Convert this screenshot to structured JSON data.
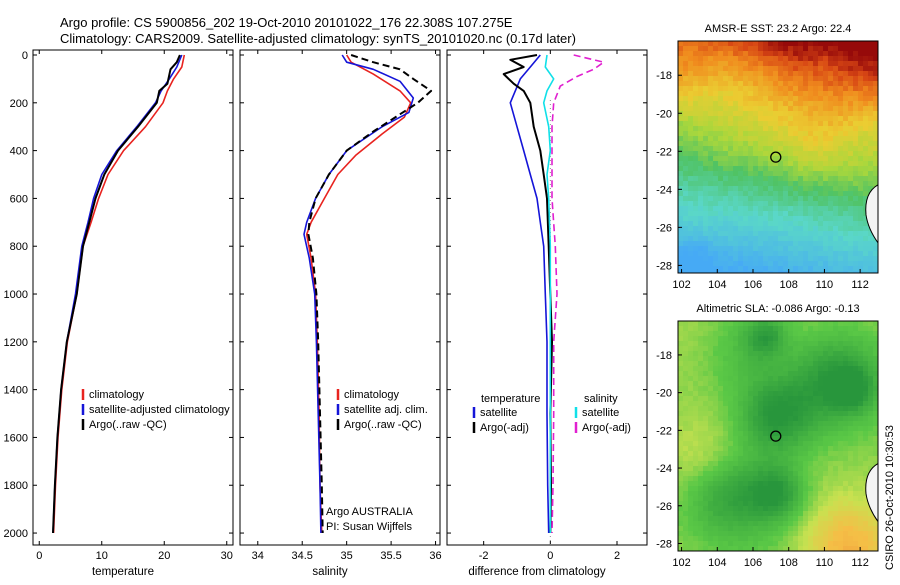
{
  "figure": {
    "title_line1": "Argo profile: CS 5900856_202 19-Oct-2010 20101022_176 22.308S 107.275E",
    "title_line2": "Climatology: CARS2009. Satellite-adjusted climatology: synTS_20101020.nc (0.17d later)",
    "credit": "CSIRO 26-Oct-2010 10:30:53",
    "float_info": [
      "Argo AUSTRALIA",
      "PI: Susan Wijffels"
    ]
  },
  "colors": {
    "climatology": "#e8231f",
    "satellite": "#1515d8",
    "argo": "#000000",
    "satellite_salinity": "#10e0e8",
    "argo_salinity": "#e020d0",
    "zero_line": "#888888"
  },
  "chart_data": [
    {
      "type": "line",
      "xlabel": "temperature",
      "ylabel": "",
      "xlim": [
        -1,
        31
      ],
      "ylim": [
        2050,
        0
      ],
      "x_ticks": [
        "0",
        "10",
        "20",
        "30"
      ],
      "y_ticks": [
        "0",
        "200",
        "400",
        "600",
        "800",
        "1000",
        "1200",
        "1400",
        "1600",
        "1800",
        "2000"
      ],
      "legend_labels": [
        "climatology",
        "satellite-adjusted climatology",
        "Argo(..raw -QC)"
      ],
      "series": [
        {
          "name": "climatology",
          "role": "climatology",
          "dash": "solid",
          "points": [
            [
              23.2,
              0
            ],
            [
              22.8,
              50
            ],
            [
              21.5,
              100
            ],
            [
              20.5,
              150
            ],
            [
              19.8,
              200
            ],
            [
              17.0,
              300
            ],
            [
              13.5,
              400
            ],
            [
              11.0,
              500
            ],
            [
              9.5,
              600
            ],
            [
              8.3,
              700
            ],
            [
              7.0,
              800
            ],
            [
              6.0,
              1000
            ],
            [
              4.5,
              1200
            ],
            [
              3.6,
              1400
            ],
            [
              3.0,
              1600
            ],
            [
              2.6,
              1800
            ],
            [
              2.3,
              2000
            ]
          ]
        },
        {
          "name": "satellite-adjusted climatology",
          "role": "satellite",
          "dash": "solid",
          "points": [
            [
              22.8,
              0
            ],
            [
              22.0,
              50
            ],
            [
              20.8,
              100
            ],
            [
              19.5,
              150
            ],
            [
              18.6,
              200
            ],
            [
              15.6,
              300
            ],
            [
              12.4,
              400
            ],
            [
              10.0,
              500
            ],
            [
              8.7,
              600
            ],
            [
              7.8,
              700
            ],
            [
              6.8,
              800
            ],
            [
              5.8,
              1000
            ],
            [
              4.4,
              1200
            ],
            [
              3.5,
              1400
            ],
            [
              2.9,
              1600
            ],
            [
              2.5,
              1800
            ],
            [
              2.2,
              2000
            ]
          ]
        },
        {
          "name": "Argo(..raw -QC)",
          "role": "argo",
          "dash": "solid",
          "points": [
            [
              22.5,
              0
            ],
            [
              22.0,
              30
            ],
            [
              21.0,
              60
            ],
            [
              20.5,
              120
            ],
            [
              19.2,
              150
            ],
            [
              18.8,
              200
            ],
            [
              15.8,
              300
            ],
            [
              12.6,
              400
            ],
            [
              10.4,
              500
            ],
            [
              9.0,
              600
            ],
            [
              8.0,
              700
            ],
            [
              7.0,
              800
            ],
            [
              6.0,
              1000
            ],
            [
              4.4,
              1200
            ],
            [
              3.5,
              1400
            ],
            [
              2.9,
              1600
            ],
            [
              2.5,
              1800
            ],
            [
              2.2,
              2000
            ]
          ]
        }
      ]
    },
    {
      "type": "line",
      "xlabel": "salinity",
      "ylabel": "",
      "xlim": [
        33.8,
        36.05
      ],
      "ylim": [
        2050,
        0
      ],
      "x_ticks": [
        "34",
        "34.5",
        "35",
        "35.5",
        "36"
      ],
      "y_ticks": [],
      "legend_labels": [
        "climatology",
        "satellite adj. clim.",
        "Argo(..raw -QC)"
      ],
      "series": [
        {
          "name": "climatology",
          "role": "climatology",
          "dash": "solid",
          "points": [
            [
              35.0,
              0
            ],
            [
              35.05,
              30
            ],
            [
              35.3,
              80
            ],
            [
              35.6,
              150
            ],
            [
              35.72,
              200
            ],
            [
              35.65,
              260
            ],
            [
              35.4,
              330
            ],
            [
              35.1,
              420
            ],
            [
              34.9,
              500
            ],
            [
              34.75,
              600
            ],
            [
              34.6,
              700
            ],
            [
              34.55,
              750
            ],
            [
              34.6,
              850
            ],
            [
              34.65,
              1000
            ],
            [
              34.67,
              1200
            ],
            [
              34.69,
              1500
            ],
            [
              34.7,
              1800
            ],
            [
              34.72,
              2000
            ]
          ]
        },
        {
          "name": "satellite adj. clim.",
          "role": "satellite",
          "dash": "solid",
          "points": [
            [
              34.95,
              0
            ],
            [
              35.0,
              30
            ],
            [
              35.3,
              60
            ],
            [
              35.6,
              110
            ],
            [
              35.75,
              180
            ],
            [
              35.7,
              240
            ],
            [
              35.4,
              300
            ],
            [
              35.0,
              400
            ],
            [
              34.8,
              500
            ],
            [
              34.65,
              600
            ],
            [
              34.55,
              700
            ],
            [
              34.52,
              750
            ],
            [
              34.58,
              850
            ],
            [
              34.64,
              1000
            ],
            [
              34.66,
              1200
            ],
            [
              34.68,
              1500
            ],
            [
              34.7,
              1800
            ],
            [
              34.71,
              2000
            ]
          ]
        },
        {
          "name": "Argo(..raw -QC)",
          "role": "argo",
          "dash": "dashed",
          "points": [
            [
              35.05,
              0
            ],
            [
              35.3,
              30
            ],
            [
              35.6,
              60
            ],
            [
              35.75,
              100
            ],
            [
              35.95,
              150
            ],
            [
              35.8,
              200
            ],
            [
              35.55,
              260
            ],
            [
              35.3,
              320
            ],
            [
              35.0,
              400
            ],
            [
              34.8,
              500
            ],
            [
              34.65,
              600
            ],
            [
              34.58,
              700
            ],
            [
              34.57,
              750
            ],
            [
              34.62,
              850
            ],
            [
              34.66,
              1000
            ],
            [
              34.68,
              1200
            ],
            [
              34.7,
              1500
            ],
            [
              34.72,
              1800
            ],
            [
              34.73,
              2000
            ]
          ]
        }
      ]
    },
    {
      "type": "line",
      "xlabel": "difference from climatology",
      "ylabel": "",
      "xlim": [
        -3.1,
        2.9
      ],
      "ylim": [
        2050,
        0
      ],
      "x_ticks": [
        "-2",
        "0",
        "2"
      ],
      "y_ticks": [],
      "legend_header": [
        "temperature",
        "salinity"
      ],
      "legend_labels": [
        "satellite",
        "Argo(-adj)",
        "satellite",
        "Argo(-adj)"
      ],
      "series": [
        {
          "name": "satellite",
          "group": "temperature",
          "role": "satellite",
          "dash": "solid",
          "points": [
            [
              -0.3,
              0
            ],
            [
              -0.6,
              50
            ],
            [
              -0.9,
              100
            ],
            [
              -1.2,
              200
            ],
            [
              -1.0,
              300
            ],
            [
              -0.8,
              400
            ],
            [
              -0.6,
              500
            ],
            [
              -0.4,
              600
            ],
            [
              -0.3,
              700
            ],
            [
              -0.2,
              800
            ],
            [
              -0.15,
              1000
            ],
            [
              -0.1,
              1200
            ],
            [
              -0.1,
              1500
            ],
            [
              -0.08,
              1800
            ],
            [
              -0.05,
              2000
            ]
          ]
        },
        {
          "name": "Argo(-adj)",
          "group": "temperature",
          "role": "argo",
          "dash": "solid",
          "points": [
            [
              -0.4,
              0
            ],
            [
              -1.2,
              20
            ],
            [
              -0.8,
              50
            ],
            [
              -1.4,
              80
            ],
            [
              -1.1,
              120
            ],
            [
              -0.8,
              150
            ],
            [
              -0.6,
              200
            ],
            [
              -0.5,
              300
            ],
            [
              -0.3,
              400
            ],
            [
              -0.2,
              500
            ],
            [
              -0.1,
              600
            ],
            [
              -0.05,
              800
            ],
            [
              0.0,
              1000
            ],
            [
              0.05,
              1200
            ],
            [
              0.0,
              1500
            ],
            [
              0.02,
              1800
            ],
            [
              0.0,
              2000
            ]
          ]
        },
        {
          "name": "satellite",
          "group": "salinity",
          "role": "satellite_salinity",
          "dash": "solid",
          "points": [
            [
              -0.1,
              0
            ],
            [
              -0.15,
              50
            ],
            [
              0.1,
              100
            ],
            [
              -0.1,
              150
            ],
            [
              -0.2,
              200
            ],
            [
              -0.05,
              300
            ],
            [
              0.0,
              400
            ],
            [
              -0.1,
              500
            ],
            [
              -0.05,
              600
            ],
            [
              0.0,
              800
            ],
            [
              0.0,
              1000
            ],
            [
              0.0,
              1500
            ],
            [
              0.0,
              2000
            ]
          ]
        },
        {
          "name": "Argo(-adj)",
          "group": "salinity",
          "role": "argo_salinity",
          "dash": "dashed",
          "points": [
            [
              0.7,
              0
            ],
            [
              1.6,
              30
            ],
            [
              1.3,
              60
            ],
            [
              0.8,
              90
            ],
            [
              0.3,
              130
            ],
            [
              0.1,
              200
            ],
            [
              0.05,
              300
            ],
            [
              0.05,
              600
            ],
            [
              0.15,
              800
            ],
            [
              0.2,
              1000
            ],
            [
              0.1,
              1200
            ],
            [
              0.1,
              1500
            ],
            [
              0.08,
              1800
            ],
            [
              0.05,
              2000
            ]
          ]
        }
      ]
    }
  ],
  "maps": [
    {
      "title": "AMSR-E SST: 23.2 Argo: 22.4",
      "x_ticks": [
        "102",
        "104",
        "106",
        "108",
        "110",
        "112"
      ],
      "y_ticks": [
        "-18",
        "-20",
        "-22",
        "-24",
        "-26",
        "-28"
      ],
      "x_range": [
        101.8,
        113
      ],
      "y_range": [
        -28.4,
        -16.2
      ],
      "marker": [
        107.275,
        -22.308
      ],
      "colormap": "sst",
      "seed": 7
    },
    {
      "title": "Altimetric SLA: -0.086 Argo: -0.13",
      "x_ticks": [
        "102",
        "104",
        "106",
        "108",
        "110",
        "112"
      ],
      "y_ticks": [
        "-18",
        "-20",
        "-22",
        "-24",
        "-26",
        "-28"
      ],
      "x_range": [
        101.8,
        113
      ],
      "y_range": [
        -28.4,
        -16.2
      ],
      "marker": [
        107.275,
        -22.308
      ],
      "colormap": "sla",
      "seed": 19
    }
  ]
}
